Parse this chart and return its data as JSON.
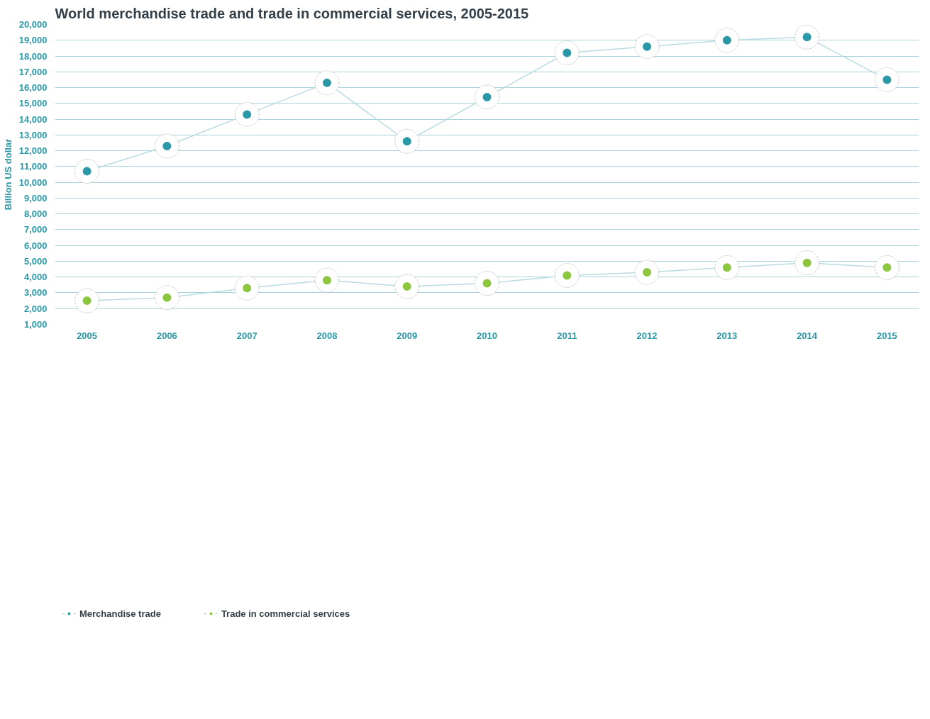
{
  "chart_data": {
    "type": "line",
    "title": "World merchandise trade and trade in commercial services, 2005-2015",
    "ylabel": "Billion US dollar",
    "categories": [
      "2005",
      "2006",
      "2007",
      "2008",
      "2009",
      "2010",
      "2011",
      "2012",
      "2013",
      "2014",
      "2015"
    ],
    "series": [
      {
        "name": "Merchandise trade",
        "color": "#2a98a6",
        "values": [
          10700,
          12300,
          14300,
          16300,
          12600,
          15400,
          18200,
          18600,
          19000,
          19200,
          16500
        ]
      },
      {
        "name": "Trade in commercial services",
        "color": "#8cc63f",
        "values": [
          2500,
          2700,
          3300,
          3800,
          3400,
          3600,
          4100,
          4300,
          4600,
          4900,
          4600
        ]
      }
    ],
    "ylim": [
      1000,
      20000
    ],
    "yticks": [
      {
        "value": 1000,
        "label": "1,000"
      },
      {
        "value": 2000,
        "label": "2,000"
      },
      {
        "value": 3000,
        "label": "3,000"
      },
      {
        "value": 4000,
        "label": "4,000"
      },
      {
        "value": 5000,
        "label": "5,000"
      },
      {
        "value": 6000,
        "label": "6,000"
      },
      {
        "value": 7000,
        "label": "7,000"
      },
      {
        "value": 8000,
        "label": "8,000"
      },
      {
        "value": 9000,
        "label": "9,000"
      },
      {
        "value": 10000,
        "label": "10,000"
      },
      {
        "value": 11000,
        "label": "11,000"
      },
      {
        "value": 12000,
        "label": "12,000"
      },
      {
        "value": 13000,
        "label": "13,000"
      },
      {
        "value": 14000,
        "label": "14,000"
      },
      {
        "value": 15000,
        "label": "15,000"
      },
      {
        "value": 16000,
        "label": "16,000"
      },
      {
        "value": 17000,
        "label": "17,000"
      },
      {
        "value": 18000,
        "label": "18,000"
      },
      {
        "value": 19000,
        "label": "19,000"
      },
      {
        "value": 20000,
        "label": "20,000"
      }
    ],
    "grid": "y",
    "legend": "bottom left",
    "marker": "circle",
    "line_style": "solid"
  }
}
